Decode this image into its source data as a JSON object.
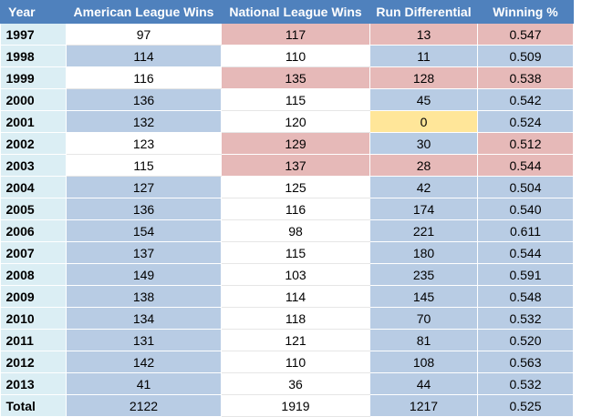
{
  "headers": [
    "Year",
    "American League Wins",
    "National League Wins",
    "Run Differential",
    "Winning %"
  ],
  "rows": [
    {
      "year": "1997",
      "al": "97",
      "nl": "117",
      "rd": "13",
      "wp": "0.547",
      "fill": [
        "white",
        "red",
        "red",
        "red"
      ]
    },
    {
      "year": "1998",
      "al": "114",
      "nl": "110",
      "rd": "11",
      "wp": "0.509",
      "fill": [
        "blue",
        "white",
        "blue",
        "blue"
      ]
    },
    {
      "year": "1999",
      "al": "116",
      "nl": "135",
      "rd": "128",
      "wp": "0.538",
      "fill": [
        "white",
        "red",
        "red",
        "red"
      ]
    },
    {
      "year": "2000",
      "al": "136",
      "nl": "115",
      "rd": "45",
      "wp": "0.542",
      "fill": [
        "blue",
        "white",
        "blue",
        "blue"
      ]
    },
    {
      "year": "2001",
      "al": "132",
      "nl": "120",
      "rd": "0",
      "wp": "0.524",
      "fill": [
        "blue",
        "white",
        "yellow",
        "blue"
      ]
    },
    {
      "year": "2002",
      "al": "123",
      "nl": "129",
      "rd": "30",
      "wp": "0.512",
      "fill": [
        "white",
        "red",
        "blue",
        "red"
      ]
    },
    {
      "year": "2003",
      "al": "115",
      "nl": "137",
      "rd": "28",
      "wp": "0.544",
      "fill": [
        "white",
        "red",
        "red",
        "red"
      ]
    },
    {
      "year": "2004",
      "al": "127",
      "nl": "125",
      "rd": "42",
      "wp": "0.504",
      "fill": [
        "blue",
        "white",
        "blue",
        "blue"
      ]
    },
    {
      "year": "2005",
      "al": "136",
      "nl": "116",
      "rd": "174",
      "wp": "0.540",
      "fill": [
        "blue",
        "white",
        "blue",
        "blue"
      ]
    },
    {
      "year": "2006",
      "al": "154",
      "nl": "98",
      "rd": "221",
      "wp": "0.611",
      "fill": [
        "blue",
        "white",
        "blue",
        "blue"
      ]
    },
    {
      "year": "2007",
      "al": "137",
      "nl": "115",
      "rd": "180",
      "wp": "0.544",
      "fill": [
        "blue",
        "white",
        "blue",
        "blue"
      ]
    },
    {
      "year": "2008",
      "al": "149",
      "nl": "103",
      "rd": "235",
      "wp": "0.591",
      "fill": [
        "blue",
        "white",
        "blue",
        "blue"
      ]
    },
    {
      "year": "2009",
      "al": "138",
      "nl": "114",
      "rd": "145",
      "wp": "0.548",
      "fill": [
        "blue",
        "white",
        "blue",
        "blue"
      ]
    },
    {
      "year": "2010",
      "al": "134",
      "nl": "118",
      "rd": "70",
      "wp": "0.532",
      "fill": [
        "blue",
        "white",
        "blue",
        "blue"
      ]
    },
    {
      "year": "2011",
      "al": "131",
      "nl": "121",
      "rd": "81",
      "wp": "0.520",
      "fill": [
        "blue",
        "white",
        "blue",
        "blue"
      ]
    },
    {
      "year": "2012",
      "al": "142",
      "nl": "110",
      "rd": "108",
      "wp": "0.563",
      "fill": [
        "blue",
        "white",
        "blue",
        "blue"
      ]
    },
    {
      "year": "2013",
      "al": "41",
      "nl": "36",
      "rd": "44",
      "wp": "0.532",
      "fill": [
        "blue",
        "white",
        "blue",
        "blue"
      ]
    },
    {
      "year": "Total",
      "al": "2122",
      "nl": "1919",
      "rd": "1217",
      "wp": "0.525",
      "fill": [
        "blue",
        "white",
        "blue",
        "blue"
      ]
    }
  ],
  "colors": {
    "header_bg": "#4f81bd",
    "year_col_bg": "#dbeef4",
    "blue": "#b8cce4",
    "red": "#e6b9b8",
    "yellow": "#ffe699",
    "white": "#ffffff"
  }
}
